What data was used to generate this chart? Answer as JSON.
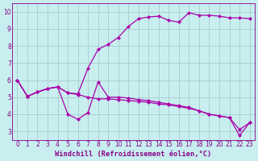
{
  "background_color": "#c8eef0",
  "grid_color": "#aacccc",
  "line_color": "#aa00aa",
  "xlabel": "Windchill (Refroidissement éolien,°C)",
  "xlim": [
    -0.5,
    23.5
  ],
  "ylim": [
    2.5,
    10.5
  ],
  "yticks": [
    3,
    4,
    5,
    6,
    7,
    8,
    9,
    10
  ],
  "xticks": [
    0,
    1,
    2,
    3,
    4,
    5,
    6,
    7,
    8,
    9,
    10,
    11,
    12,
    13,
    14,
    15,
    16,
    17,
    18,
    19,
    20,
    21,
    22,
    23
  ],
  "line1_x": [
    0,
    1,
    2,
    3,
    4,
    5,
    6,
    7,
    8,
    9,
    10,
    11,
    12,
    13,
    14,
    15,
    16,
    17,
    18,
    19,
    20,
    21,
    22,
    23
  ],
  "line1_y": [
    6.0,
    5.05,
    5.3,
    5.5,
    5.6,
    5.25,
    5.2,
    6.7,
    7.8,
    8.1,
    8.5,
    9.15,
    9.6,
    9.7,
    9.75,
    9.5,
    9.4,
    9.95,
    9.8,
    9.8,
    9.75,
    9.65,
    9.65,
    9.6
  ],
  "line2_x": [
    0,
    1,
    2,
    3,
    4,
    5,
    6,
    7,
    8,
    9,
    10,
    11,
    12,
    13,
    14,
    15,
    16,
    17,
    18,
    19,
    20,
    21,
    22,
    23
  ],
  "line2_y": [
    6.0,
    5.05,
    5.3,
    5.5,
    5.6,
    4.0,
    3.7,
    4.1,
    5.9,
    5.0,
    5.0,
    4.95,
    4.85,
    4.8,
    4.7,
    4.6,
    4.5,
    4.4,
    4.2,
    4.0,
    3.9,
    3.8,
    3.1,
    3.5
  ],
  "line3_x": [
    0,
    1,
    2,
    3,
    4,
    5,
    6,
    7,
    8,
    9,
    10,
    11,
    12,
    13,
    14,
    15,
    16,
    17,
    18,
    19,
    20,
    21,
    22,
    23
  ],
  "line3_y": [
    6.0,
    5.05,
    5.3,
    5.5,
    5.6,
    5.25,
    5.15,
    5.0,
    4.9,
    4.9,
    4.85,
    4.8,
    4.75,
    4.7,
    4.6,
    4.55,
    4.45,
    4.35,
    4.2,
    4.0,
    3.9,
    3.8,
    2.75,
    3.5
  ],
  "marker_size": 2.5,
  "linewidth": 0.9,
  "font_color": "#880088",
  "tick_fontsize": 5.5,
  "xlabel_fontsize": 6.2
}
